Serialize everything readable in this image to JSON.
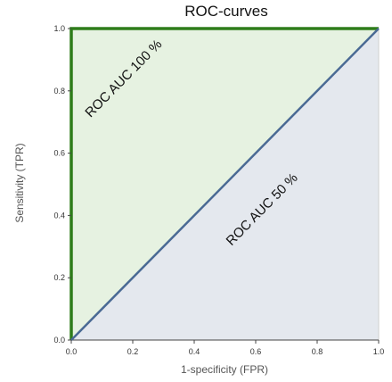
{
  "chart_data": {
    "type": "line",
    "title": "ROC-curves",
    "xlabel": "1-specificity (FPR)",
    "ylabel": "Sensitivity (TPR)",
    "xlim": [
      0,
      1
    ],
    "ylim": [
      0,
      1
    ],
    "x_ticks": [
      "0.0",
      "0.2",
      "0.4",
      "0.6",
      "0.8",
      "1.0"
    ],
    "y_ticks": [
      "0.0",
      "0.2",
      "0.4",
      "0.6",
      "0.8",
      "1.0"
    ],
    "grid": false,
    "legend": "none",
    "series": [
      {
        "label": "ROC AUC 100 %",
        "color": "#2e7d1a",
        "fill_color": "#e6f2e1",
        "points": [
          [
            0,
            0
          ],
          [
            0,
            1
          ],
          [
            1,
            1
          ]
        ]
      },
      {
        "label": "ROC AUC 50 %",
        "color": "#4a6a94",
        "fill_color": "#e4e8ee",
        "points": [
          [
            0,
            0
          ],
          [
            1,
            1
          ]
        ]
      }
    ],
    "annotations": [
      {
        "text": "ROC AUC 100 %",
        "x": 0.18,
        "y": 0.83
      },
      {
        "text": "ROC AUC 50 %",
        "x": 0.63,
        "y": 0.41
      }
    ]
  }
}
